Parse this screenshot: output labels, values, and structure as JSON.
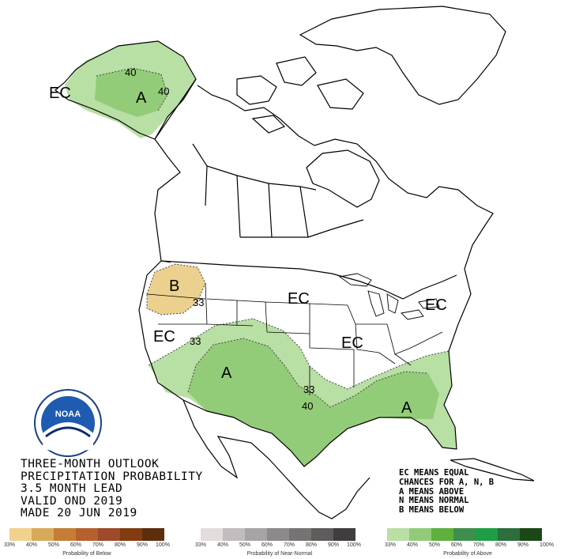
{
  "title_lines": [
    "THREE-MONTH OUTLOOK",
    "PRECIPITATION PROBABILITY",
    "3.5 MONTH LEAD",
    "VALID OND 2019",
    "MADE 20 JUN 2019"
  ],
  "key_lines": [
    "EC MEANS EQUAL",
    "CHANCES FOR A, N, B",
    "A MEANS ABOVE",
    "N MEANS NORMAL",
    "B MEANS BELOW"
  ],
  "map_labels": {
    "ec": "EC",
    "a": "A",
    "b": "B",
    "c33": "33",
    "c40": "40"
  },
  "logo": {
    "text": "NOAA"
  },
  "colors": {
    "above_33": "#b8dfa4",
    "above_40": "#93cc78",
    "below_33": "#ecd18e"
  },
  "legend": {
    "below": {
      "caption": "Probability of Below",
      "ticks": [
        "33%",
        "40%",
        "50%",
        "60%",
        "70%",
        "80%",
        "90%",
        "100%"
      ],
      "colors": [
        "#f0d28e",
        "#d8a95a",
        "#c57d35",
        "#b4612d",
        "#9c4a29",
        "#813c12",
        "#5e2d0e"
      ]
    },
    "normal": {
      "caption": "Probability of Near-Normal",
      "ticks": [
        "33%",
        "40%",
        "50%",
        "60%",
        "70%",
        "80%",
        "90%",
        "100%"
      ],
      "colors": [
        "#e3dcdd",
        "#c2bcbe",
        "#a8a4a5",
        "#8d8a8b",
        "#767373",
        "#5f5c5c",
        "#403e3e"
      ]
    },
    "above": {
      "caption": "Probability of Above",
      "ticks": [
        "33%",
        "40%",
        "50%",
        "60%",
        "70%",
        "80%",
        "90%",
        "100%"
      ],
      "colors": [
        "#b9dfa7",
        "#92cb77",
        "#5fb03d",
        "#3e8f4e",
        "#1f9d44",
        "#2d6e3c",
        "#1c4716"
      ]
    }
  }
}
